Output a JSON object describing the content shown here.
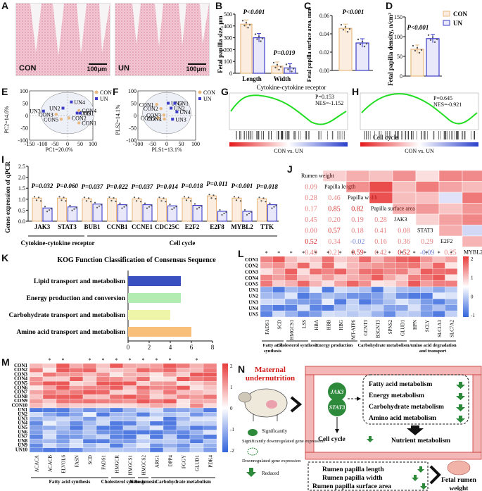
{
  "panels": {
    "A": "A",
    "B": "B",
    "C": "C",
    "D": "D",
    "E": "E",
    "F": "F",
    "G": "G",
    "H": "H",
    "I": "I",
    "J": "J",
    "K": "K",
    "L": "L",
    "M": "M",
    "N": "N"
  },
  "groups": {
    "con": "CON",
    "un": "UN"
  },
  "colors": {
    "con": "#e8b980",
    "un": "#3d3dc8",
    "con_fill": "#fbeee0",
    "un_fill": "#e8e8fa",
    "gsea": "#22dd22"
  },
  "histology": {
    "con_label": "CON",
    "un_label": "UN",
    "scale": "100μm"
  },
  "panelB": {
    "ylabel": "Fetal papilla size, μm",
    "categories": [
      "Length",
      "Width"
    ],
    "pvals": [
      "P<0.001",
      "P=0.019"
    ],
    "ylim": [
      0,
      500
    ],
    "ticks": [
      "0",
      "100",
      "200",
      "300",
      "400",
      "500"
    ],
    "values": {
      "con": [
        415,
        60
      ],
      "un": [
        300,
        45
      ]
    }
  },
  "panelC": {
    "ylabel": "Fetal papilla surface area, mm²",
    "pval": "P<0.001",
    "ylim": [
      0,
      0.06
    ],
    "ticks": [
      "0.00",
      "0.02",
      "0.04",
      "0.06"
    ],
    "values": {
      "con": 0.046,
      "un": 0.03
    }
  },
  "panelD": {
    "ylabel": "Fetal papilla density, n/cm²",
    "pval": "P<0.001",
    "ylim": [
      0,
      150
    ],
    "ticks": [
      "0",
      "50",
      "100",
      "150"
    ],
    "values": {
      "con": 68,
      "un": 95
    }
  },
  "panelE": {
    "xlabel": "PC1=20.0%",
    "ylabel": "PC2=14.6%",
    "xticks": [
      "-150",
      "-100",
      "-50",
      "0",
      "50",
      "100"
    ],
    "yticks": [
      "-100",
      "-50",
      "0",
      "50",
      "100"
    ],
    "points": [
      {
        "label": "UN4",
        "group": "un",
        "x": 15,
        "y": 55
      },
      {
        "label": "UN3",
        "group": "un",
        "x": -95,
        "y": 18
      },
      {
        "label": "UN5",
        "group": "un",
        "x": 38,
        "y": 10
      },
      {
        "label": "UN1",
        "group": "un",
        "x": 50,
        "y": 10
      },
      {
        "label": "UN2",
        "group": "un",
        "x": -18,
        "y": 30
      },
      {
        "label": "CON4",
        "group": "con",
        "x": 45,
        "y": 20
      },
      {
        "label": "CON2",
        "group": "con",
        "x": 5,
        "y": -10
      },
      {
        "label": "CON3",
        "group": "con",
        "x": -45,
        "y": 5
      },
      {
        "label": "CON5",
        "group": "con",
        "x": -25,
        "y": -15
      },
      {
        "label": "CON1",
        "group": "con",
        "x": 45,
        "y": -30
      }
    ]
  },
  "panelF": {
    "xlabel": "PLS1=13.1%",
    "ylabel": "PLS2=14.1%",
    "xticks": [
      "-100",
      "-50",
      "0",
      "50",
      "100"
    ],
    "yticks": [
      "-100",
      "-50",
      "0",
      "50",
      "100"
    ],
    "points": [
      {
        "label": "UN5",
        "group": "un",
        "x": 5,
        "y": 50
      },
      {
        "label": "UN1",
        "group": "un",
        "x": 28,
        "y": 50
      },
      {
        "label": "UN2",
        "group": "un",
        "x": 15,
        "y": 30
      },
      {
        "label": "UN4",
        "group": "un",
        "x": 35,
        "y": 15
      },
      {
        "label": "UN3",
        "group": "un",
        "x": 20,
        "y": -15
      },
      {
        "label": "CON1",
        "group": "con",
        "x": -35,
        "y": 45
      },
      {
        "label": "CON2",
        "group": "con",
        "x": -20,
        "y": 28
      },
      {
        "label": "CON3",
        "group": "con",
        "x": -10,
        "y": 2
      },
      {
        "label": "CON5",
        "group": "con",
        "x": -30,
        "y": -10
      },
      {
        "label": "CON4",
        "group": "con",
        "x": -8,
        "y": -14
      }
    ]
  },
  "panelG": {
    "title": "Cytokine-cytokine receptor",
    "p": "P=0.153",
    "nes": "NES=-1.152",
    "axis": "CON vs. UN"
  },
  "panelH": {
    "title": "Cell cycle",
    "p": "P=0.645",
    "nes": "NES=-0.921",
    "axis": "CON vs. UN"
  },
  "panelI": {
    "ylabel": "Genes expression of qPCR",
    "ticks": [
      "0.0",
      "0.5",
      "1.0",
      "1.5",
      "2.0",
      "2.5"
    ],
    "ylim": [
      0,
      2.5
    ],
    "genes": [
      "JAK3",
      "STAT3",
      "BUB1",
      "CCNB1",
      "CCNE1",
      "CDC25C",
      "E2F2",
      "E2F8",
      "MYBL2",
      "TTK"
    ],
    "pvals": [
      "P=0.032",
      "P=0.060",
      "P=0.037",
      "P=0.022",
      "P=0.037",
      "P=0.014",
      "P=0.018",
      "P=0.011",
      "P<0.001",
      "P=0.018"
    ],
    "con": [
      1.05,
      1.05,
      1.02,
      1.03,
      1.02,
      1.02,
      1.05,
      1.15,
      1.05,
      1.02
    ],
    "un": [
      0.6,
      0.65,
      0.78,
      0.75,
      0.75,
      0.7,
      0.72,
      0.45,
      0.45,
      0.75
    ],
    "group_labels": [
      "Cytokine-cytokine receptor",
      "Cell cycle"
    ]
  },
  "panelJ": {
    "vars": [
      "Rumen weight",
      "Papilla length",
      "Papilla width",
      "Papilla surface area",
      "JAK3",
      "STAT3",
      "E2F2",
      "MYBL2"
    ],
    "rows": [
      [
        "0.09"
      ],
      [
        "0.28",
        "0.46"
      ],
      [
        "0.17",
        "0.85",
        "0.82"
      ],
      [
        "0.45",
        "0.20",
        "0.19",
        "0.28"
      ],
      [
        "0.00",
        "0.57",
        "0.18",
        "0.41",
        "0.08"
      ],
      [
        "0.52",
        "0.34",
        "-0.02",
        "0.16",
        "0.36",
        "0.29"
      ],
      [
        "0.49",
        "0.21",
        "0.59",
        "0.42",
        "0.52",
        "-0.09",
        "0.25"
      ]
    ]
  },
  "panelK": {
    "title": "KOG Function Classification of Consensus Sequence",
    "categories": [
      "Lipid transport and metabolism",
      "Energy production and conversion",
      "Carbohydrate transport and metabolism",
      "Amino acid transport and metabolism"
    ],
    "values": [
      5,
      5,
      4,
      6
    ],
    "bar_colors": [
      "#3a4fc0",
      "#b3ecb0",
      "#eef5a8",
      "#f8bf7a"
    ],
    "ticks": [
      "0",
      "2",
      "4",
      "6",
      "8"
    ],
    "xlim": [
      0,
      8
    ]
  },
  "panelL": {
    "rows": [
      "CON1",
      "CON2",
      "CON3",
      "CON4",
      "CON5",
      "UN1",
      "UN2",
      "UN3",
      "UN4",
      "UN5"
    ],
    "genes": [
      "FADS1",
      "SCD",
      "HMGCS1",
      "LSS",
      "HBA",
      "HBB",
      "HBG",
      "MT-ATP6",
      "GCNT3",
      "B3GNT3",
      "SPNS2",
      "GLUD1",
      "HPN",
      "SCLY",
      "SLC1A3",
      "SLC7A2"
    ],
    "stars": [
      "*",
      "*",
      "*",
      "*",
      "*",
      "*",
      "*",
      "*",
      "*",
      "*",
      "*",
      "*",
      "*",
      "*",
      "*",
      "*"
    ],
    "scale": [
      "2",
      "1",
      "0",
      "-1"
    ],
    "groups": [
      "Fatty acid synthesis",
      "Cholesterol synthesis",
      "Energy production",
      "Carbohydrate metabolism",
      "Amino acid degradation and transport"
    ]
  },
  "panelM": {
    "rows": [
      "CON1",
      "CON2",
      "CON3",
      "CON4",
      "CON5",
      "CON6",
      "CON7",
      "CON8",
      "CON9",
      "CON10",
      "UN1",
      "UN2",
      "UN3",
      "UN4",
      "UN5",
      "UN6",
      "UN7",
      "UN8",
      "UN9",
      "UN10"
    ],
    "genes": [
      "ACACA",
      "ACACB",
      "ELVOL6",
      "FASN",
      "SCD",
      "FADS1",
      "HMGCR",
      "HMGCS1",
      "HMGCS2",
      "ARG1",
      "DPP4",
      "FGGY",
      "GLUD1",
      "PDK4"
    ],
    "stars": [
      "",
      "*",
      "*",
      "",
      "*",
      "*",
      "*",
      "*",
      "*",
      "*",
      "*",
      "",
      "*",
      ""
    ],
    "scale": [
      "2",
      "1",
      "0",
      "-1",
      "-2"
    ],
    "groups": [
      "Fatty acid synthesis",
      "Cholesterol synthesis",
      "Keto-genesis",
      "Carbohydrate metabolism"
    ]
  },
  "panelN": {
    "title_line1": "Maternal",
    "title_line2": "undernutrition",
    "jak3": "JAK3",
    "stat3": "STAT3",
    "metabolism": [
      "Fatty acid metabolism",
      "Energy metabolism",
      "Carbohydrate metabolism",
      "Amino acid metabolism"
    ],
    "cell_cycle": "Cell cycle",
    "nutrient": "Nutrient metabolism",
    "legend": [
      "Significantly downregulated gene expression",
      "Downregulated gene expression",
      "Reduced"
    ],
    "outcomes": [
      "Rumen papilla length",
      "Rumen papilla width",
      "Rumen papilla surface area"
    ],
    "fetal": [
      "Fetal rumen",
      "weight"
    ]
  }
}
